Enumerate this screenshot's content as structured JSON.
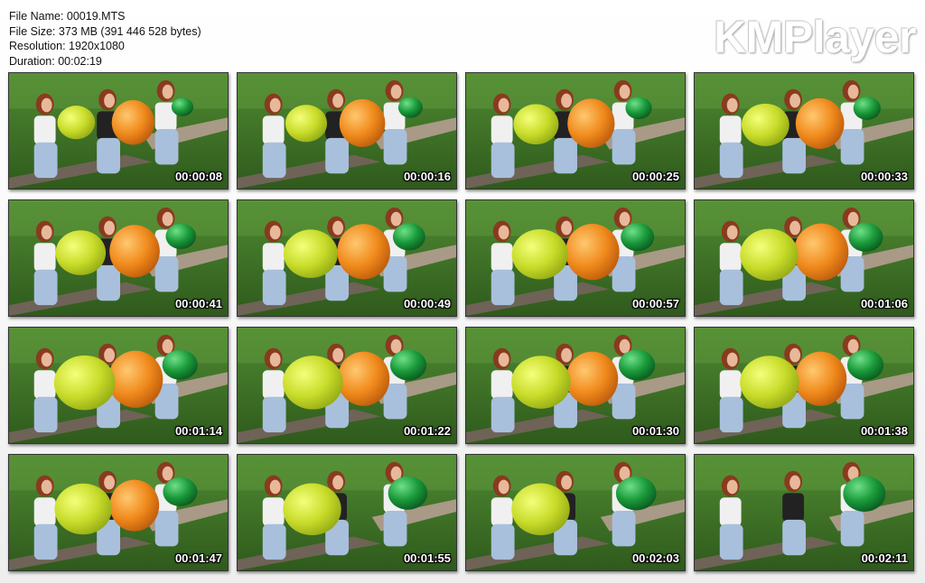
{
  "file_info": {
    "name_line": "File Name: 00019.MTS",
    "size_line": "File Size: 373 MB (391 446 528 bytes)",
    "resolution_line": "Resolution: 1920x1080",
    "duration_line": "Duration: 00:02:19"
  },
  "brand": "KMPlayer",
  "colors": {
    "grass": "#3f6f28",
    "yellow_balloon": "#c8dc2a",
    "orange_balloon": "#f08a1c",
    "green_balloon": "#1a9a3a",
    "bench": "#a89a86"
  },
  "thumbnails": [
    {
      "time": "00:00:08",
      "yellow": 0.25,
      "orange": 0.35,
      "green": 0.15
    },
    {
      "time": "00:00:16",
      "yellow": 0.33,
      "orange": 0.42,
      "green": 0.2
    },
    {
      "time": "00:00:25",
      "yellow": 0.4,
      "orange": 0.45,
      "green": 0.24
    },
    {
      "time": "00:00:33",
      "yellow": 0.45,
      "orange": 0.48,
      "green": 0.26
    },
    {
      "time": "00:00:41",
      "yellow": 0.5,
      "orange": 0.52,
      "green": 0.32
    },
    {
      "time": "00:00:49",
      "yellow": 0.58,
      "orange": 0.58,
      "green": 0.36
    },
    {
      "time": "00:00:57",
      "yellow": 0.62,
      "orange": 0.6,
      "green": 0.38
    },
    {
      "time": "00:01:06",
      "yellow": 0.66,
      "orange": 0.62,
      "green": 0.4
    },
    {
      "time": "00:01:14",
      "yellow": 0.72,
      "orange": 0.62,
      "green": 0.42
    },
    {
      "time": "00:01:22",
      "yellow": 0.7,
      "orange": 0.56,
      "green": 0.44
    },
    {
      "time": "00:01:30",
      "yellow": 0.68,
      "orange": 0.56,
      "green": 0.44
    },
    {
      "time": "00:01:38",
      "yellow": 0.68,
      "orange": 0.56,
      "green": 0.44
    },
    {
      "time": "00:01:47",
      "yellow": 0.64,
      "orange": 0.5,
      "green": 0.4
    },
    {
      "time": "00:01:55",
      "yellow": 0.66,
      "orange": 0.0,
      "green": 0.5
    },
    {
      "time": "00:02:03",
      "yellow": 0.66,
      "orange": 0.0,
      "green": 0.52
    },
    {
      "time": "00:02:11",
      "yellow": 0.0,
      "orange": 0.0,
      "green": 0.56
    }
  ]
}
